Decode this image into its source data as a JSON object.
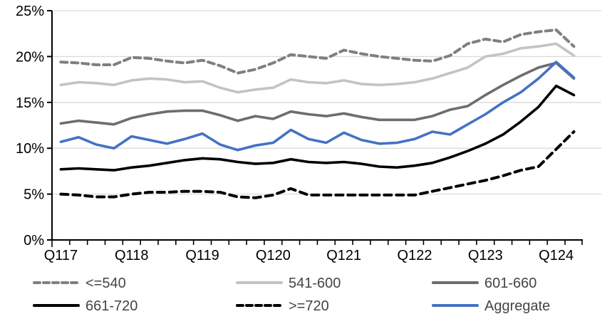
{
  "chart_data": {
    "type": "line",
    "title": "",
    "xlabel": "",
    "ylabel": "",
    "ylim": [
      0,
      25
    ],
    "y_tick_step": 5,
    "y_tick_labels": [
      "0%",
      "5%",
      "10%",
      "15%",
      "20%",
      "25%"
    ],
    "x_tick_labels": [
      "Q117",
      "Q118",
      "Q119",
      "Q120",
      "Q121",
      "Q122",
      "Q123",
      "Q124"
    ],
    "x_label_every": 4,
    "n_points": 30,
    "grid": "horizontal",
    "gridline_color": "#d9d9d9",
    "axis_color": "#000000",
    "legend_position": "bottom",
    "legend_rows": [
      [
        "<=540",
        "541-600",
        "601-660"
      ],
      [
        "661-720",
        ">=720",
        "Aggregate"
      ]
    ],
    "legend_text_color": "#444444",
    "series": [
      {
        "name": "<=540",
        "color": "#7f7f7f",
        "style": "dashed",
        "values": [
          19.4,
          19.3,
          19.1,
          19.1,
          19.9,
          19.8,
          19.5,
          19.3,
          19.6,
          19.0,
          18.2,
          18.6,
          19.3,
          20.2,
          20.0,
          19.8,
          20.7,
          20.3,
          20.0,
          19.8,
          19.6,
          19.5,
          20.1,
          21.4,
          21.9,
          21.6,
          22.4,
          22.7,
          22.9,
          21.1
        ]
      },
      {
        "name": "541-600",
        "color": "#c3c3c3",
        "style": "solid",
        "values": [
          16.9,
          17.2,
          17.1,
          16.9,
          17.4,
          17.6,
          17.5,
          17.2,
          17.3,
          16.6,
          16.1,
          16.4,
          16.6,
          17.5,
          17.2,
          17.1,
          17.4,
          17.0,
          16.9,
          17.0,
          17.2,
          17.6,
          18.2,
          18.8,
          20.0,
          20.3,
          20.9,
          21.1,
          21.4,
          20.1
        ]
      },
      {
        "name": "601-660",
        "color": "#6d6d6d",
        "style": "solid",
        "values": [
          12.7,
          13.0,
          12.8,
          12.6,
          13.3,
          13.7,
          14.0,
          14.1,
          14.1,
          13.6,
          13.0,
          13.5,
          13.2,
          14.0,
          13.7,
          13.5,
          13.8,
          13.4,
          13.1,
          13.1,
          13.1,
          13.5,
          14.2,
          14.6,
          15.8,
          16.9,
          17.9,
          18.8,
          19.3,
          17.6
        ]
      },
      {
        "name": "661-720",
        "color": "#000000",
        "style": "solid",
        "values": [
          7.7,
          7.8,
          7.7,
          7.6,
          7.9,
          8.1,
          8.4,
          8.7,
          8.9,
          8.8,
          8.5,
          8.3,
          8.4,
          8.8,
          8.5,
          8.4,
          8.5,
          8.3,
          8.0,
          7.9,
          8.1,
          8.4,
          9.0,
          9.7,
          10.5,
          11.5,
          12.9,
          14.5,
          16.8,
          15.8
        ]
      },
      {
        "name": ">=720",
        "color": "#000000",
        "style": "dashed",
        "values": [
          5.0,
          4.9,
          4.7,
          4.7,
          5.0,
          5.2,
          5.2,
          5.3,
          5.3,
          5.2,
          4.7,
          4.6,
          4.9,
          5.6,
          4.9,
          4.9,
          4.9,
          4.9,
          4.9,
          4.9,
          4.9,
          5.3,
          5.7,
          6.1,
          6.5,
          7.0,
          7.6,
          8.0,
          9.9,
          11.8
        ]
      },
      {
        "name": "Aggregate",
        "color": "#4472c4",
        "style": "solid",
        "values": [
          10.7,
          11.2,
          10.4,
          10.0,
          11.3,
          10.9,
          10.5,
          11.0,
          11.6,
          10.4,
          9.8,
          10.3,
          10.6,
          12.0,
          11.0,
          10.6,
          11.7,
          10.9,
          10.5,
          10.6,
          11.0,
          11.8,
          11.5,
          12.6,
          13.7,
          15.0,
          16.1,
          17.6,
          19.4,
          17.7
        ]
      }
    ]
  }
}
